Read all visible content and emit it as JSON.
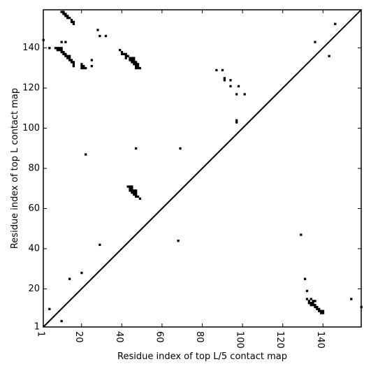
{
  "chart_data": {
    "type": "scatter",
    "title": "",
    "xlabel": "Residue index of top L/5 contact map",
    "ylabel": "Residue index of top L contact map",
    "xlim": [
      1,
      159
    ],
    "ylim": [
      1,
      159
    ],
    "xticks": [
      1,
      20,
      40,
      60,
      80,
      100,
      120,
      140
    ],
    "yticks": [
      1,
      20,
      40,
      60,
      80,
      100,
      120,
      140
    ],
    "diagonal": true,
    "grid": false,
    "color": "#000000",
    "points": [
      [
        10,
        158
      ],
      [
        11,
        158
      ],
      [
        11,
        157
      ],
      [
        12,
        157
      ],
      [
        12,
        156
      ],
      [
        13,
        156
      ],
      [
        13,
        155
      ],
      [
        14,
        155
      ],
      [
        15,
        154
      ],
      [
        15,
        153
      ],
      [
        16,
        153
      ],
      [
        16,
        152
      ],
      [
        1,
        144
      ],
      [
        4,
        140
      ],
      [
        7,
        140
      ],
      [
        8,
        140
      ],
      [
        9,
        140
      ],
      [
        10,
        140
      ],
      [
        8,
        139
      ],
      [
        9,
        139
      ],
      [
        10,
        139
      ],
      [
        10,
        138
      ],
      [
        11,
        138
      ],
      [
        11,
        137
      ],
      [
        12,
        137
      ],
      [
        12,
        136
      ],
      [
        13,
        136
      ],
      [
        14,
        136
      ],
      [
        13,
        135
      ],
      [
        14,
        135
      ],
      [
        14,
        134
      ],
      [
        15,
        134
      ],
      [
        15,
        133
      ],
      [
        16,
        133
      ],
      [
        16,
        132
      ],
      [
        16,
        131
      ],
      [
        10,
        143
      ],
      [
        12,
        143
      ],
      [
        25,
        134
      ],
      [
        25,
        131
      ],
      [
        20,
        132
      ],
      [
        20,
        131
      ],
      [
        21,
        131
      ],
      [
        21,
        130
      ],
      [
        22,
        130
      ],
      [
        20,
        130
      ],
      [
        28,
        149
      ],
      [
        29,
        146
      ],
      [
        32,
        146
      ],
      [
        39,
        139
      ],
      [
        40,
        138
      ],
      [
        40,
        137
      ],
      [
        41,
        137
      ],
      [
        42,
        137
      ],
      [
        42,
        136
      ],
      [
        43,
        136
      ],
      [
        42,
        135
      ],
      [
        44,
        135
      ],
      [
        45,
        135
      ],
      [
        46,
        135
      ],
      [
        44,
        134
      ],
      [
        45,
        134
      ],
      [
        46,
        134
      ],
      [
        45,
        133
      ],
      [
        46,
        133
      ],
      [
        47,
        133
      ],
      [
        46,
        132
      ],
      [
        47,
        132
      ],
      [
        48,
        132
      ],
      [
        47,
        131
      ],
      [
        48,
        131
      ],
      [
        47,
        130
      ],
      [
        48,
        130
      ],
      [
        49,
        130
      ],
      [
        87,
        129
      ],
      [
        90,
        129
      ],
      [
        91,
        125
      ],
      [
        91,
        124
      ],
      [
        94,
        124
      ],
      [
        94,
        121
      ],
      [
        98,
        121
      ],
      [
        97,
        117
      ],
      [
        101,
        117
      ],
      [
        97,
        104
      ],
      [
        97,
        103
      ],
      [
        136,
        143
      ],
      [
        143,
        136
      ],
      [
        146,
        152
      ],
      [
        22,
        87
      ],
      [
        47,
        90
      ],
      [
        69,
        90
      ],
      [
        43,
        71
      ],
      [
        44,
        71
      ],
      [
        45,
        71
      ],
      [
        44,
        70
      ],
      [
        45,
        70
      ],
      [
        44,
        69
      ],
      [
        45,
        69
      ],
      [
        46,
        69
      ],
      [
        47,
        69
      ],
      [
        45,
        68
      ],
      [
        46,
        68
      ],
      [
        47,
        68
      ],
      [
        46,
        67
      ],
      [
        47,
        67
      ],
      [
        47,
        66
      ],
      [
        48,
        66
      ],
      [
        49,
        65
      ],
      [
        29,
        42
      ],
      [
        68,
        44
      ],
      [
        129,
        47
      ],
      [
        20,
        28
      ],
      [
        14,
        25
      ],
      [
        131,
        25
      ],
      [
        132,
        19
      ],
      [
        132,
        15
      ],
      [
        134,
        15
      ],
      [
        133,
        14
      ],
      [
        135,
        14
      ],
      [
        136,
        14
      ],
      [
        133,
        13
      ],
      [
        134,
        13
      ],
      [
        135,
        13
      ],
      [
        134,
        12
      ],
      [
        135,
        12
      ],
      [
        136,
        12
      ],
      [
        136,
        11
      ],
      [
        137,
        11
      ],
      [
        137,
        10
      ],
      [
        138,
        10
      ],
      [
        138,
        9
      ],
      [
        139,
        9
      ],
      [
        140,
        9
      ],
      [
        139,
        8
      ],
      [
        140,
        8
      ],
      [
        154,
        15
      ],
      [
        159,
        11
      ],
      [
        4,
        10
      ],
      [
        10,
        4
      ]
    ]
  }
}
